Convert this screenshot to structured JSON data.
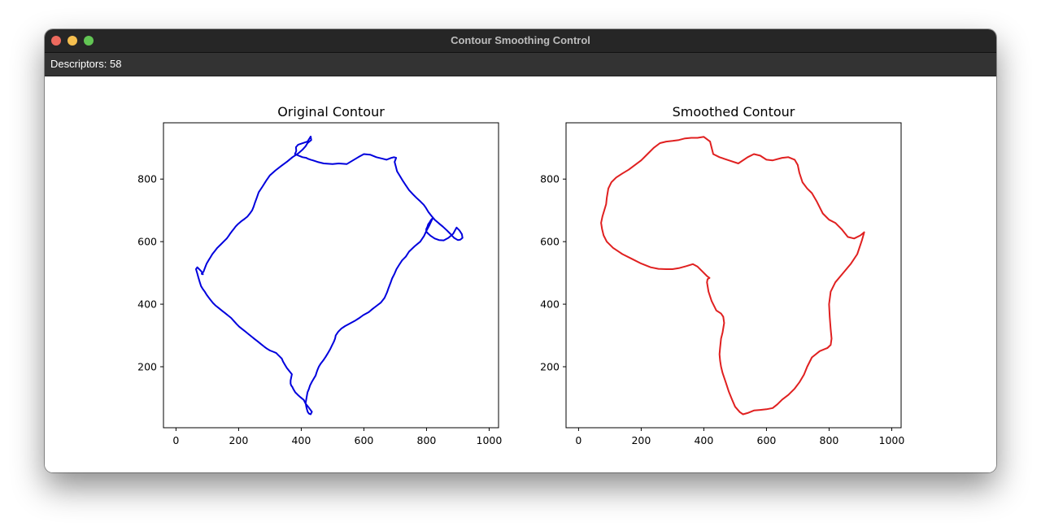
{
  "window": {
    "title": "Contour Smoothing Control",
    "traffic_lights": [
      {
        "name": "close",
        "color": "#ed6a5e"
      },
      {
        "name": "minimize",
        "color": "#f5bf4f"
      },
      {
        "name": "zoom",
        "color": "#62c554"
      }
    ]
  },
  "status": {
    "descriptors_text": "Descriptors: 58"
  },
  "chart_data": [
    {
      "type": "line",
      "title": "Original Contour",
      "xlabel": "",
      "ylabel": "",
      "xlim": [
        -40,
        1030
      ],
      "ylim": [
        5,
        980
      ],
      "xticks": [
        0,
        200,
        400,
        600,
        800,
        1000
      ],
      "yticks": [
        200,
        400,
        600,
        800
      ],
      "grid": false,
      "color": "#0000dd",
      "series": [
        {
          "x": [
            430,
            420,
            390,
            383,
            384,
            380,
            392,
            404,
            416,
            421,
            430,
            437,
            452,
            472,
            500,
            520,
            545,
            565,
            582,
            600,
            620,
            640,
            660,
            672,
            688,
            696,
            703,
            698,
            702,
            706,
            715,
            724,
            734,
            744,
            756,
            768,
            781,
            791,
            798,
            806,
            816,
            826,
            840,
            852,
            865,
            876,
            888,
            900,
            908,
            915,
            913,
            905,
            896,
            885,
            870,
            855,
            840,
            826,
            814,
            806,
            799,
            799,
            803,
            805,
            810,
            815,
            820,
            815,
            808,
            800,
            792,
            780,
            762,
            744,
            734,
            722,
            712,
            704,
            698,
            690,
            685,
            679,
            674,
            666,
            654,
            641,
            628,
            616,
            598,
            584,
            570,
            555,
            540,
            528,
            518,
            510,
            508,
            504,
            498,
            492,
            486,
            478,
            470,
            462,
            456,
            452,
            449,
            446,
            440,
            434,
            428,
            424,
            420,
            418,
            416,
            414,
            416,
            418,
            421,
            425,
            430,
            434,
            428,
            422,
            414,
            408,
            398,
            389,
            381,
            375,
            371,
            368,
            366,
            366,
            368,
            370,
            362,
            354,
            348,
            342,
            338,
            332,
            326,
            320,
            310,
            300,
            290,
            282,
            272,
            262,
            252,
            242,
            232,
            222,
            212,
            202,
            194,
            185,
            176,
            166,
            156,
            146,
            136,
            126,
            118,
            110,
            104,
            98,
            92,
            86,
            80,
            76,
            72,
            68,
            64,
            68,
            72,
            76,
            80,
            84,
            86,
            85,
            82,
            84,
            88,
            90,
            94,
            98,
            104,
            110,
            116,
            124,
            132,
            142,
            152,
            162,
            168,
            172,
            178,
            184,
            190,
            198,
            208,
            218,
            228,
            236,
            243,
            248,
            252,
            258,
            264,
            276,
            288,
            300,
            318,
            336,
            355,
            372,
            390,
            405,
            414,
            420,
            426,
            432,
            430
          ],
          "y": [
            936,
            920,
            910,
            902,
            890,
            880,
            875,
            870,
            868,
            865,
            862,
            860,
            855,
            850,
            848,
            850,
            848,
            860,
            870,
            880,
            878,
            870,
            865,
            862,
            868,
            870,
            868,
            855,
            840,
            825,
            810,
            795,
            780,
            765,
            752,
            740,
            728,
            718,
            708,
            695,
            682,
            670,
            658,
            648,
            636,
            625,
            612,
            605,
            606,
            612,
            624,
            636,
            645,
            625,
            612,
            604,
            605,
            610,
            618,
            625,
            632,
            640,
            648,
            655,
            662,
            670,
            675,
            665,
            650,
            635,
            618,
            600,
            585,
            568,
            552,
            540,
            525,
            512,
            498,
            482,
            468,
            452,
            438,
            420,
            405,
            395,
            385,
            375,
            365,
            355,
            346,
            338,
            330,
            322,
            312,
            300,
            290,
            280,
            268,
            255,
            245,
            232,
            220,
            210,
            200,
            190,
            182,
            172,
            162,
            152,
            140,
            128,
            118,
            108,
            96,
            84,
            72,
            64,
            55,
            50,
            48,
            56,
            64,
            72,
            82,
            94,
            102,
            110,
            118,
            128,
            136,
            140,
            146,
            156,
            166,
            176,
            186,
            196,
            206,
            216,
            226,
            232,
            238,
            244,
            248,
            252,
            258,
            264,
            272,
            280,
            288,
            296,
            304,
            312,
            320,
            328,
            336,
            346,
            356,
            364,
            372,
            380,
            388,
            396,
            404,
            414,
            422,
            430,
            440,
            448,
            458,
            470,
            484,
            498,
            512,
            518,
            514,
            510,
            506,
            500,
            496,
            496,
            497,
            500,
            504,
            510,
            520,
            530,
            540,
            550,
            560,
            570,
            580,
            590,
            600,
            610,
            618,
            624,
            632,
            640,
            648,
            656,
            665,
            672,
            680,
            690,
            700,
            712,
            724,
            740,
            758,
            776,
            795,
            812,
            828,
            842,
            856,
            870,
            882,
            895,
            905,
            915,
            920,
            925,
            936
          ]
        }
      ]
    },
    {
      "type": "line",
      "title": "Smoothed Contour",
      "xlabel": "",
      "ylabel": "",
      "xlim": [
        -40,
        1030
      ],
      "ylim": [
        5,
        980
      ],
      "xticks": [
        0,
        200,
        400,
        600,
        800,
        1000
      ],
      "yticks": [
        200,
        400,
        600,
        800
      ],
      "grid": false,
      "color": "#e02020",
      "series": [
        {
          "x": [
            420,
            430,
            450,
            480,
            510,
            540,
            560,
            580,
            600,
            620,
            650,
            670,
            690,
            700,
            705,
            715,
            730,
            745,
            760,
            780,
            800,
            820,
            840,
            860,
            880,
            900,
            912,
            905,
            890,
            870,
            845,
            820,
            805,
            800,
            802,
            805,
            808,
            805,
            795,
            770,
            745,
            730,
            720,
            705,
            690,
            670,
            650,
            635,
            620,
            600,
            580,
            560,
            540,
            525,
            515,
            500,
            490,
            480,
            470,
            460,
            455,
            452,
            450,
            452,
            455,
            460,
            465,
            462,
            455,
            440,
            425,
            415,
            410,
            412,
            418,
            410,
            395,
            380,
            365,
            345,
            320,
            300,
            280,
            255,
            230,
            200,
            170,
            140,
            110,
            90,
            80,
            75,
            72,
            76,
            82,
            88,
            90,
            95,
            105,
            120,
            140,
            160,
            180,
            200,
            220,
            240,
            260,
            280,
            300,
            320,
            340,
            360,
            380,
            400,
            420
          ],
          "y": [
            920,
            880,
            870,
            860,
            850,
            870,
            880,
            875,
            862,
            860,
            868,
            870,
            862,
            845,
            820,
            790,
            770,
            755,
            730,
            690,
            670,
            660,
            640,
            615,
            610,
            620,
            630,
            605,
            560,
            530,
            500,
            470,
            440,
            400,
            360,
            320,
            290,
            270,
            260,
            250,
            230,
            200,
            175,
            150,
            130,
            110,
            95,
            80,
            68,
            64,
            62,
            60,
            52,
            48,
            55,
            72,
            95,
            120,
            150,
            180,
            200,
            220,
            240,
            260,
            290,
            310,
            340,
            360,
            370,
            380,
            410,
            440,
            470,
            480,
            484,
            490,
            505,
            520,
            528,
            522,
            515,
            512,
            512,
            513,
            518,
            530,
            545,
            560,
            580,
            600,
            620,
            640,
            660,
            680,
            700,
            720,
            740,
            770,
            790,
            805,
            818,
            830,
            845,
            860,
            880,
            900,
            915,
            920,
            922,
            925,
            930,
            932,
            932,
            935,
            920
          ]
        }
      ]
    }
  ]
}
